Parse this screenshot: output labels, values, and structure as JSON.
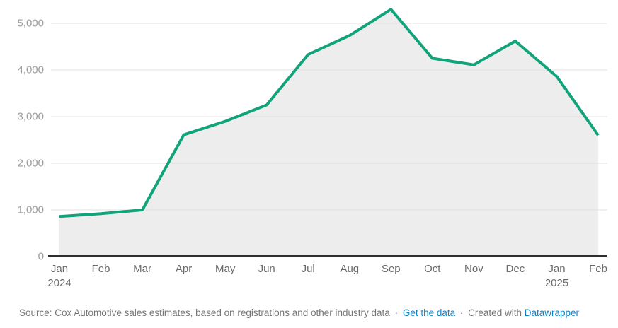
{
  "chart_data": {
    "type": "area",
    "title": "",
    "x": [
      "Jan 2024",
      "Feb 2024",
      "Mar 2024",
      "Apr 2024",
      "May 2024",
      "Jun 2024",
      "Jul 2024",
      "Aug 2024",
      "Sep 2024",
      "Oct 2024",
      "Nov 2024",
      "Dec 2024",
      "Jan 2025",
      "Feb 2025"
    ],
    "values": [
      860,
      920,
      1000,
      2610,
      2900,
      3250,
      4330,
      4740,
      5300,
      4250,
      4110,
      4620,
      3860,
      2600
    ],
    "x_tick_labels": [
      {
        "month": "Jan",
        "year": "2024"
      },
      {
        "month": "Feb"
      },
      {
        "month": "Mar"
      },
      {
        "month": "Apr"
      },
      {
        "month": "May"
      },
      {
        "month": "Jun"
      },
      {
        "month": "Jul"
      },
      {
        "month": "Aug"
      },
      {
        "month": "Sep"
      },
      {
        "month": "Oct"
      },
      {
        "month": "Nov"
      },
      {
        "month": "Dec"
      },
      {
        "month": "Jan",
        "year": "2025"
      },
      {
        "month": "Feb"
      }
    ],
    "y_ticks": [
      {
        "value": 0,
        "label": "0"
      },
      {
        "value": 1000,
        "label": "1,000"
      },
      {
        "value": 2000,
        "label": "2,000"
      },
      {
        "value": 3000,
        "label": "3,000"
      },
      {
        "value": 4000,
        "label": "4,000"
      },
      {
        "value": 5000,
        "label": "5,000"
      }
    ],
    "ylim": [
      0,
      5500
    ],
    "grid": true,
    "legend": "none"
  },
  "colors": {
    "line": "#11a37a",
    "area_fill": "#ededed",
    "gridline": "#e0e0e0",
    "axis_baseline": "#2f2f2f",
    "y_tick_text": "#9c9c9c",
    "x_tick_text": "#696969",
    "footer_text": "#767676",
    "link": "#1783c4"
  },
  "footer": {
    "source": "Source: Cox Automotive sales estimates, based on registrations and other industry data",
    "separator": "·",
    "get_data_label": "Get the data",
    "created_with": "Created with",
    "datawrapper_label": "Datawrapper"
  }
}
